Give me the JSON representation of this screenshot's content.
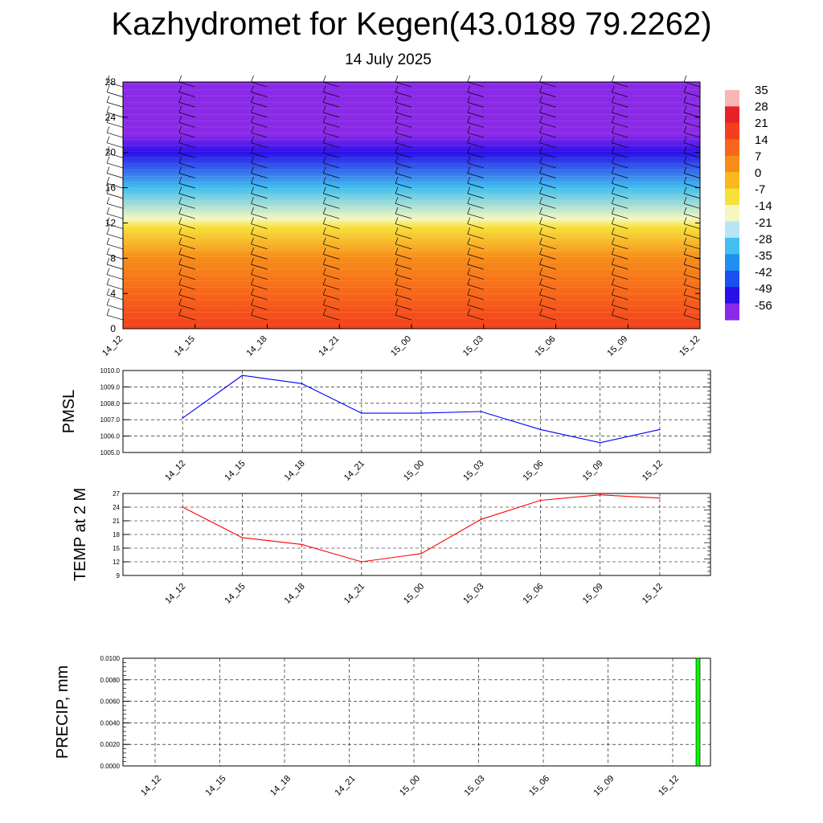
{
  "header": {
    "title": "Kazhydromet for Kegen(43.0189 79.2262)",
    "subtitle": "14 July 2025"
  },
  "chart_data": [
    {
      "type": "heatmap",
      "ylim": [
        0,
        28
      ],
      "yticks": [
        "0",
        "4",
        "8",
        "12",
        "16",
        "20",
        "24",
        "28"
      ],
      "xticks": [
        "14_12",
        "14_15",
        "14_18",
        "14_21",
        "15_00",
        "15_03",
        "15_06",
        "15_09",
        "15_12"
      ],
      "colorbar_labels": [
        "35",
        "28",
        "21",
        "14",
        "7",
        "0",
        "-7",
        "-14",
        "-21",
        "-28",
        "-35",
        "-42",
        "-49",
        "-56"
      ],
      "colorbar_colors": [
        "#f7b5b5",
        "#e8202a",
        "#f2401c",
        "#f7661a",
        "#f88c18",
        "#f9b81c",
        "#f7e03a",
        "#f5f7c0",
        "#b8e4f6",
        "#40bff0",
        "#1f8ff0",
        "#1a4ff0",
        "#2a10e8",
        "#8a2ae8"
      ],
      "rows": [
        {
          "y": 0,
          "value": 22
        },
        {
          "y": 4,
          "value": 16
        },
        {
          "y": 8,
          "value": 7
        },
        {
          "y": 11.5,
          "value": -5
        },
        {
          "y": 12.5,
          "value": -14
        },
        {
          "y": 16,
          "value": -30
        },
        {
          "y": 20,
          "value": -52
        },
        {
          "y": 22,
          "value": -56
        },
        {
          "y": 28,
          "value": -56
        }
      ]
    },
    {
      "type": "line",
      "ylabel": "PMSL",
      "categories": [
        "14_12",
        "14_15",
        "14_18",
        "14_21",
        "15_00",
        "15_03",
        "15_06",
        "15_09",
        "15_12"
      ],
      "yticks": [
        "1005.0",
        "1006.0",
        "1007.0",
        "1008.0",
        "1009.0",
        "1010.0"
      ],
      "ylim": [
        1005.0,
        1010.0
      ],
      "color": "#0000ff",
      "values": [
        1007.1,
        1009.7,
        1009.2,
        1007.4,
        1007.4,
        1007.5,
        1006.4,
        1005.6,
        1006.4
      ]
    },
    {
      "type": "line",
      "ylabel": "TEMP at 2 M",
      "categories": [
        "14_12",
        "14_15",
        "14_18",
        "14_21",
        "15_00",
        "15_03",
        "15_06",
        "15_09",
        "15_12"
      ],
      "yticks": [
        "9",
        "12",
        "15",
        "18",
        "21",
        "24",
        "27"
      ],
      "ylim": [
        9,
        27
      ],
      "color": "#ff0000",
      "values": [
        24.0,
        17.3,
        15.8,
        12.0,
        13.8,
        21.3,
        25.5,
        26.7,
        26.0
      ]
    },
    {
      "type": "bar",
      "ylabel": "PRECIP, mm",
      "categories": [
        "14_12",
        "14_15",
        "14_18",
        "14_21",
        "15_00",
        "15_03",
        "15_06",
        "15_09",
        "15_12"
      ],
      "yticks": [
        "0.0000",
        "0.0020",
        "0.0040",
        "0.0060",
        "0.0080",
        "0.0100"
      ],
      "ylim": [
        0,
        0.01
      ],
      "color": "#00ff00",
      "values": [
        0,
        0,
        0,
        0,
        0,
        0,
        0,
        0,
        0.01
      ]
    }
  ]
}
